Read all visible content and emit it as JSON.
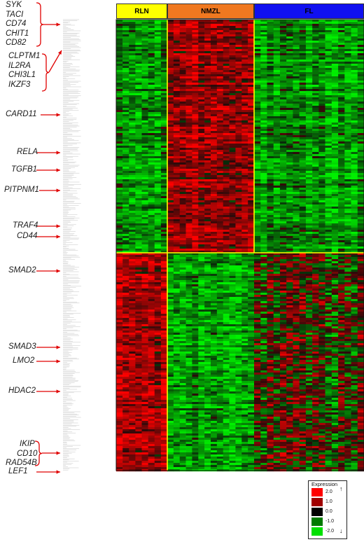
{
  "chart_data": {
    "type": "heatmap",
    "columns": [
      {
        "name": "RLN",
        "color": "#ffff00"
      },
      {
        "name": "NMZL",
        "color": "#f07820"
      },
      {
        "name": "FL",
        "color": "#1010f0"
      }
    ],
    "gene_labels": [
      "SYK",
      "TACI",
      "CD74",
      "CHIT1",
      "CD82",
      "CLPTM1",
      "IL2RA",
      "CHI3L1",
      "IKZF3",
      "CARD11",
      "RELA",
      "TGFB1",
      "PITPNM1",
      "TRAF4",
      "CD44",
      "SMAD2",
      "SMAD3",
      "LMO2",
      "HDAC2",
      "IKIP",
      "CD10",
      "RAD54B",
      "LEF1"
    ],
    "clusters": [
      {
        "position": "top",
        "pattern": {
          "RLN": "low",
          "NMZL": "high",
          "FL": "low"
        }
      },
      {
        "position": "bottom",
        "pattern": {
          "RLN": "high",
          "NMZL": "low",
          "FL": "mixed"
        }
      }
    ],
    "color_scale": {
      "title": "Expression",
      "values": [
        "2.0",
        "1.0",
        "0.0",
        "-1.0",
        "-2.0"
      ],
      "colors": [
        "#ff0000",
        "#a00000",
        "#000000",
        "#007a00",
        "#00e000"
      ],
      "arrow_up": "↑",
      "arrow_down": "↓"
    },
    "separator_color": "#ffff00",
    "arrow_color": "#e00000"
  }
}
